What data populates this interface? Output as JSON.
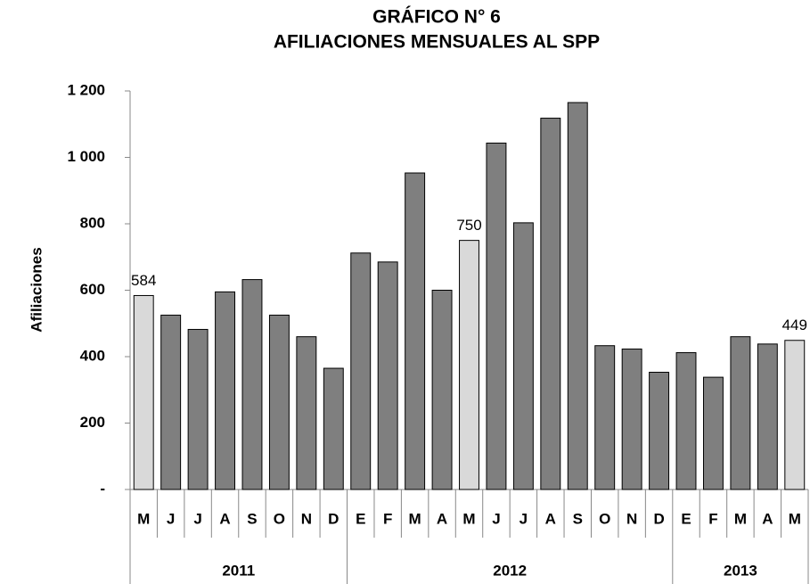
{
  "chart_data": {
    "type": "bar",
    "title": "GRÁFICO N° 6",
    "subtitle": "AFILIACIONES MENSUALES AL SPP",
    "y_label": "Afiliaciones",
    "categories": [
      "M",
      "J",
      "J",
      "A",
      "S",
      "O",
      "N",
      "D",
      "E",
      "F",
      "M",
      "A",
      "M",
      "J",
      "J",
      "A",
      "S",
      "O",
      "N",
      "D",
      "E",
      "F",
      "M",
      "A",
      "M"
    ],
    "groups": [
      "2011",
      "2011",
      "2011",
      "2011",
      "2011",
      "2011",
      "2011",
      "2011",
      "2012",
      "2012",
      "2012",
      "2012",
      "2012",
      "2012",
      "2012",
      "2012",
      "2012",
      "2012",
      "2012",
      "2012",
      "2013",
      "2013",
      "2013",
      "2013",
      "2013"
    ],
    "values": [
      584,
      525,
      482,
      595,
      632,
      525,
      460,
      365,
      712,
      685,
      953,
      600,
      750,
      1043,
      803,
      1118,
      1165,
      433,
      423,
      353,
      412,
      338,
      460,
      438,
      449
    ],
    "value_labels": [
      "584",
      null,
      null,
      null,
      null,
      null,
      null,
      null,
      null,
      null,
      null,
      null,
      "750",
      null,
      null,
      null,
      null,
      null,
      null,
      null,
      null,
      null,
      null,
      null,
      "449"
    ],
    "colors": [
      "#d9d9d9",
      "#7f7f7f",
      "#7f7f7f",
      "#7f7f7f",
      "#7f7f7f",
      "#7f7f7f",
      "#7f7f7f",
      "#7f7f7f",
      "#7f7f7f",
      "#7f7f7f",
      "#7f7f7f",
      "#7f7f7f",
      "#d9d9d9",
      "#7f7f7f",
      "#7f7f7f",
      "#7f7f7f",
      "#7f7f7f",
      "#7f7f7f",
      "#7f7f7f",
      "#7f7f7f",
      "#7f7f7f",
      "#7f7f7f",
      "#7f7f7f",
      "#7f7f7f",
      "#d9d9d9"
    ],
    "ylim": [
      0,
      1200
    ],
    "yticks": [
      {
        "value": 0,
        "label": "-"
      },
      200,
      400,
      600,
      800,
      {
        "value": 1000,
        "label": "1 000"
      },
      {
        "value": 1200,
        "label": "1 200"
      }
    ],
    "grid": false
  }
}
